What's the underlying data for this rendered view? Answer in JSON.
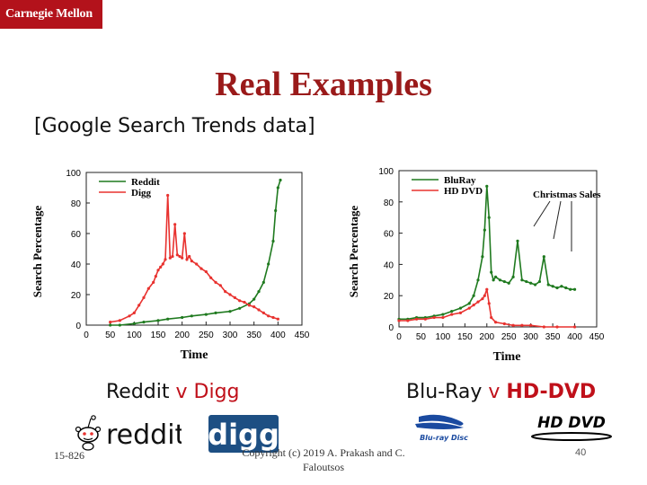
{
  "header": {
    "logo_text": "Carnegie Mellon",
    "title": "Real Examples",
    "subtitle": "[Google Search Trends data]"
  },
  "captions": {
    "left": {
      "a": "Reddit",
      "v": " v ",
      "b": "Digg"
    },
    "right": {
      "a": "Blu-Ray",
      "v": " v ",
      "b": "HD-DVD"
    }
  },
  "logos": {
    "reddit": "reddit",
    "digg": "digg",
    "bluray": "Blu-ray Disc",
    "hddvd": "HD DVD"
  },
  "footer": {
    "course": "15-826",
    "copyright_line1": "Copyright (c) 2019 A. Prakash and C.",
    "copyright_line2": "Faloutsos",
    "page": "40"
  },
  "colors": {
    "green": "#1f7a1f",
    "red": "#e8322f",
    "title": "#9a1a1a",
    "logo_bg": "#b3121b"
  },
  "chart_data": [
    {
      "type": "line",
      "xlabel": "Time",
      "ylabel": "Search Percentage",
      "xlim": [
        0,
        450
      ],
      "ylim": [
        0,
        100
      ],
      "xticks": [
        "0",
        "50",
        "100",
        "150",
        "200",
        "250",
        "300",
        "350",
        "400",
        "450"
      ],
      "yticks": [
        "0",
        "20",
        "40",
        "60",
        "80",
        "100"
      ],
      "legend_position": "top-left",
      "series": [
        {
          "name": "Reddit",
          "color": "#1f7a1f",
          "x": [
            50,
            70,
            100,
            120,
            150,
            170,
            200,
            220,
            250,
            270,
            300,
            320,
            340,
            350,
            360,
            370,
            380,
            390,
            395,
            400,
            405
          ],
          "y": [
            0,
            0,
            1,
            2,
            3,
            4,
            5,
            6,
            7,
            8,
            9,
            11,
            14,
            17,
            22,
            28,
            40,
            55,
            75,
            90,
            95
          ]
        },
        {
          "name": "Digg",
          "color": "#e8322f",
          "x": [
            50,
            70,
            90,
            100,
            110,
            120,
            130,
            140,
            145,
            150,
            155,
            160,
            165,
            170,
            175,
            180,
            185,
            190,
            195,
            200,
            205,
            210,
            215,
            220,
            230,
            240,
            250,
            260,
            270,
            280,
            290,
            300,
            310,
            320,
            330,
            340,
            350,
            360,
            370,
            380,
            390,
            400
          ],
          "y": [
            2,
            3,
            6,
            8,
            13,
            18,
            24,
            28,
            32,
            36,
            38,
            40,
            43,
            85,
            44,
            45,
            66,
            46,
            45,
            44,
            60,
            43,
            45,
            42,
            40,
            37,
            35,
            31,
            28,
            26,
            22,
            20,
            18,
            16,
            15,
            13,
            12,
            10,
            8,
            6,
            5,
            4
          ]
        }
      ]
    },
    {
      "type": "line",
      "xlabel": "Time",
      "ylabel": "Search Percentage",
      "xlim": [
        0,
        450
      ],
      "ylim": [
        0,
        100
      ],
      "xticks": [
        "0",
        "50",
        "100",
        "150",
        "200",
        "250",
        "300",
        "350",
        "400",
        "450"
      ],
      "yticks": [
        "0",
        "20",
        "40",
        "60",
        "80",
        "100"
      ],
      "legend_position": "top-left",
      "annotation": "Christmas Sales",
      "series": [
        {
          "name": "BluRay",
          "color": "#1f7a1f",
          "x": [
            0,
            20,
            40,
            60,
            80,
            100,
            120,
            140,
            160,
            170,
            180,
            190,
            195,
            200,
            205,
            210,
            215,
            220,
            230,
            240,
            250,
            260,
            270,
            280,
            290,
            300,
            310,
            320,
            330,
            340,
            350,
            360,
            370,
            380,
            390,
            400
          ],
          "y": [
            5,
            5,
            6,
            6,
            7,
            8,
            10,
            12,
            15,
            20,
            30,
            45,
            62,
            90,
            70,
            35,
            30,
            32,
            30,
            29,
            28,
            32,
            55,
            30,
            29,
            28,
            27,
            29,
            45,
            27,
            26,
            25,
            26,
            25,
            24,
            24
          ]
        },
        {
          "name": "HD DVD",
          "color": "#e8322f",
          "x": [
            0,
            20,
            40,
            60,
            80,
            100,
            120,
            140,
            160,
            170,
            180,
            190,
            195,
            200,
            205,
            210,
            220,
            240,
            260,
            280,
            300,
            330,
            360,
            400
          ],
          "y": [
            4,
            4,
            5,
            5,
            6,
            6,
            8,
            9,
            12,
            14,
            16,
            18,
            20,
            24,
            15,
            6,
            3,
            2,
            1,
            1,
            1,
            0,
            0,
            0
          ]
        }
      ]
    }
  ]
}
